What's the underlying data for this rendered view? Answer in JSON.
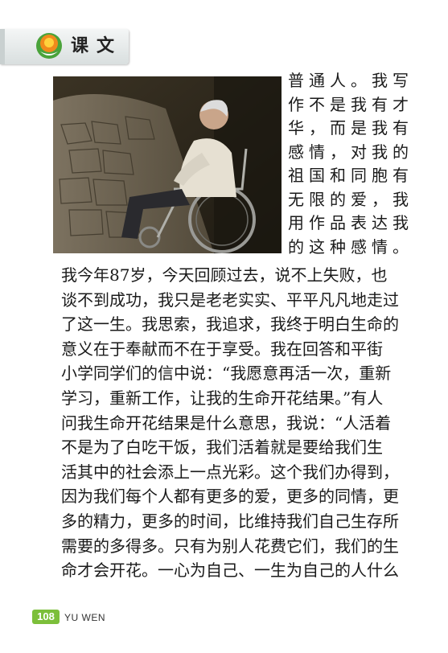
{
  "header": {
    "title": "课文"
  },
  "photo": {
    "subject": "elderly man in wheelchair on stone path"
  },
  "side_text": [
    "普通人。我写",
    "作不是我有才",
    "华，而是我有",
    "感情，对我的",
    "祖国和同胞有",
    "无限的爱，我",
    "用作品表达我",
    "的这种感情。"
  ],
  "body_text": [
    "我今年87岁，今天回顾过去，说不上失败，也",
    "谈不到成功，我只是老老实实、平平凡凡地走过",
    "了这一生。我思索，我追求，我终于明白生命的",
    "意义在于奉献而不在于享受。我在回答和平街",
    "小学同学们的信中说：“我愿意再活一次，重新",
    "学习，重新工作，让我的生命开花结果。”有人",
    "问我生命开花结果是什么意思，我说：“人活着",
    "不是为了白吃干饭，我们活着就是要给我们生",
    "活其中的社会添上一点光彩。这个我们办得到，",
    "因为我们每个人都有更多的爱，更多的同情，更",
    "多的精力，更多的时间，比维持我们自己生存所",
    "需要的多得多。只有为别人花费它们，我们的生",
    "命才会开花。一心为自己、一生为自己的人什么"
  ],
  "footer": {
    "page_number": "108",
    "book_code": "YU WEN"
  },
  "colors": {
    "page_badge": "#7cbf3a",
    "emblem_orange": "#f08a1c",
    "emblem_green": "#4aa33a"
  }
}
